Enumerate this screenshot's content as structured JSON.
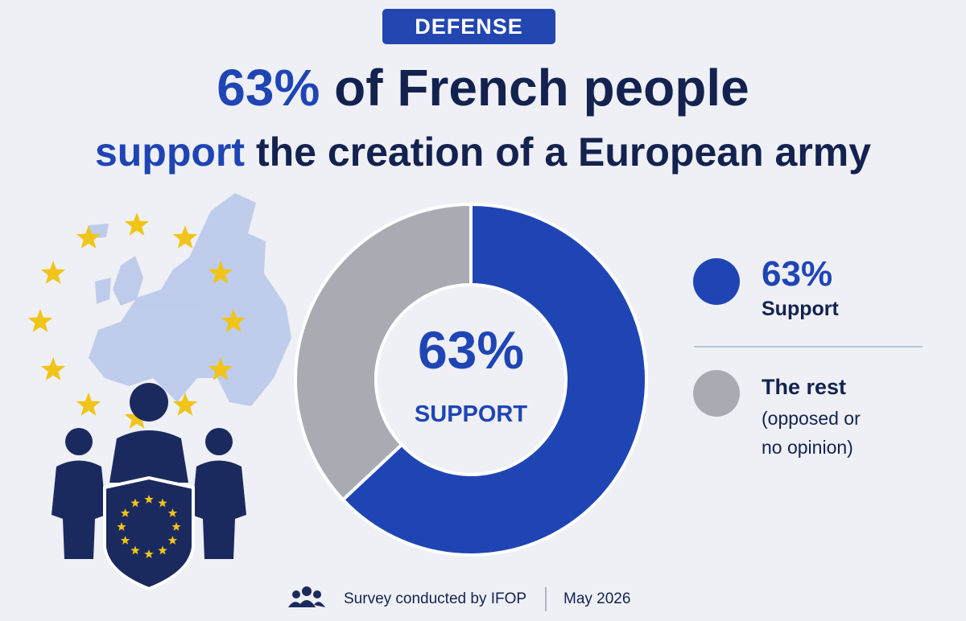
{
  "badge": "DEFENSE",
  "chart_data": {
    "type": "donut",
    "title": {
      "line1_highlight": "63%",
      "line1_rest": "of French people",
      "line2_highlight": "support",
      "line2_rest": "the creation of a European army"
    },
    "categories": [
      "Support",
      "The rest"
    ],
    "category_notes": [
      null,
      "(opposed or no opinion)"
    ],
    "values": [
      63,
      37
    ],
    "value_labels": [
      "63%",
      null
    ],
    "colors": [
      "#1f45b5",
      "#a8acb2"
    ],
    "center_caption": "SUPPORT"
  },
  "footer": {
    "source": "Survey conducted by IFOP",
    "date": "May 2026"
  }
}
